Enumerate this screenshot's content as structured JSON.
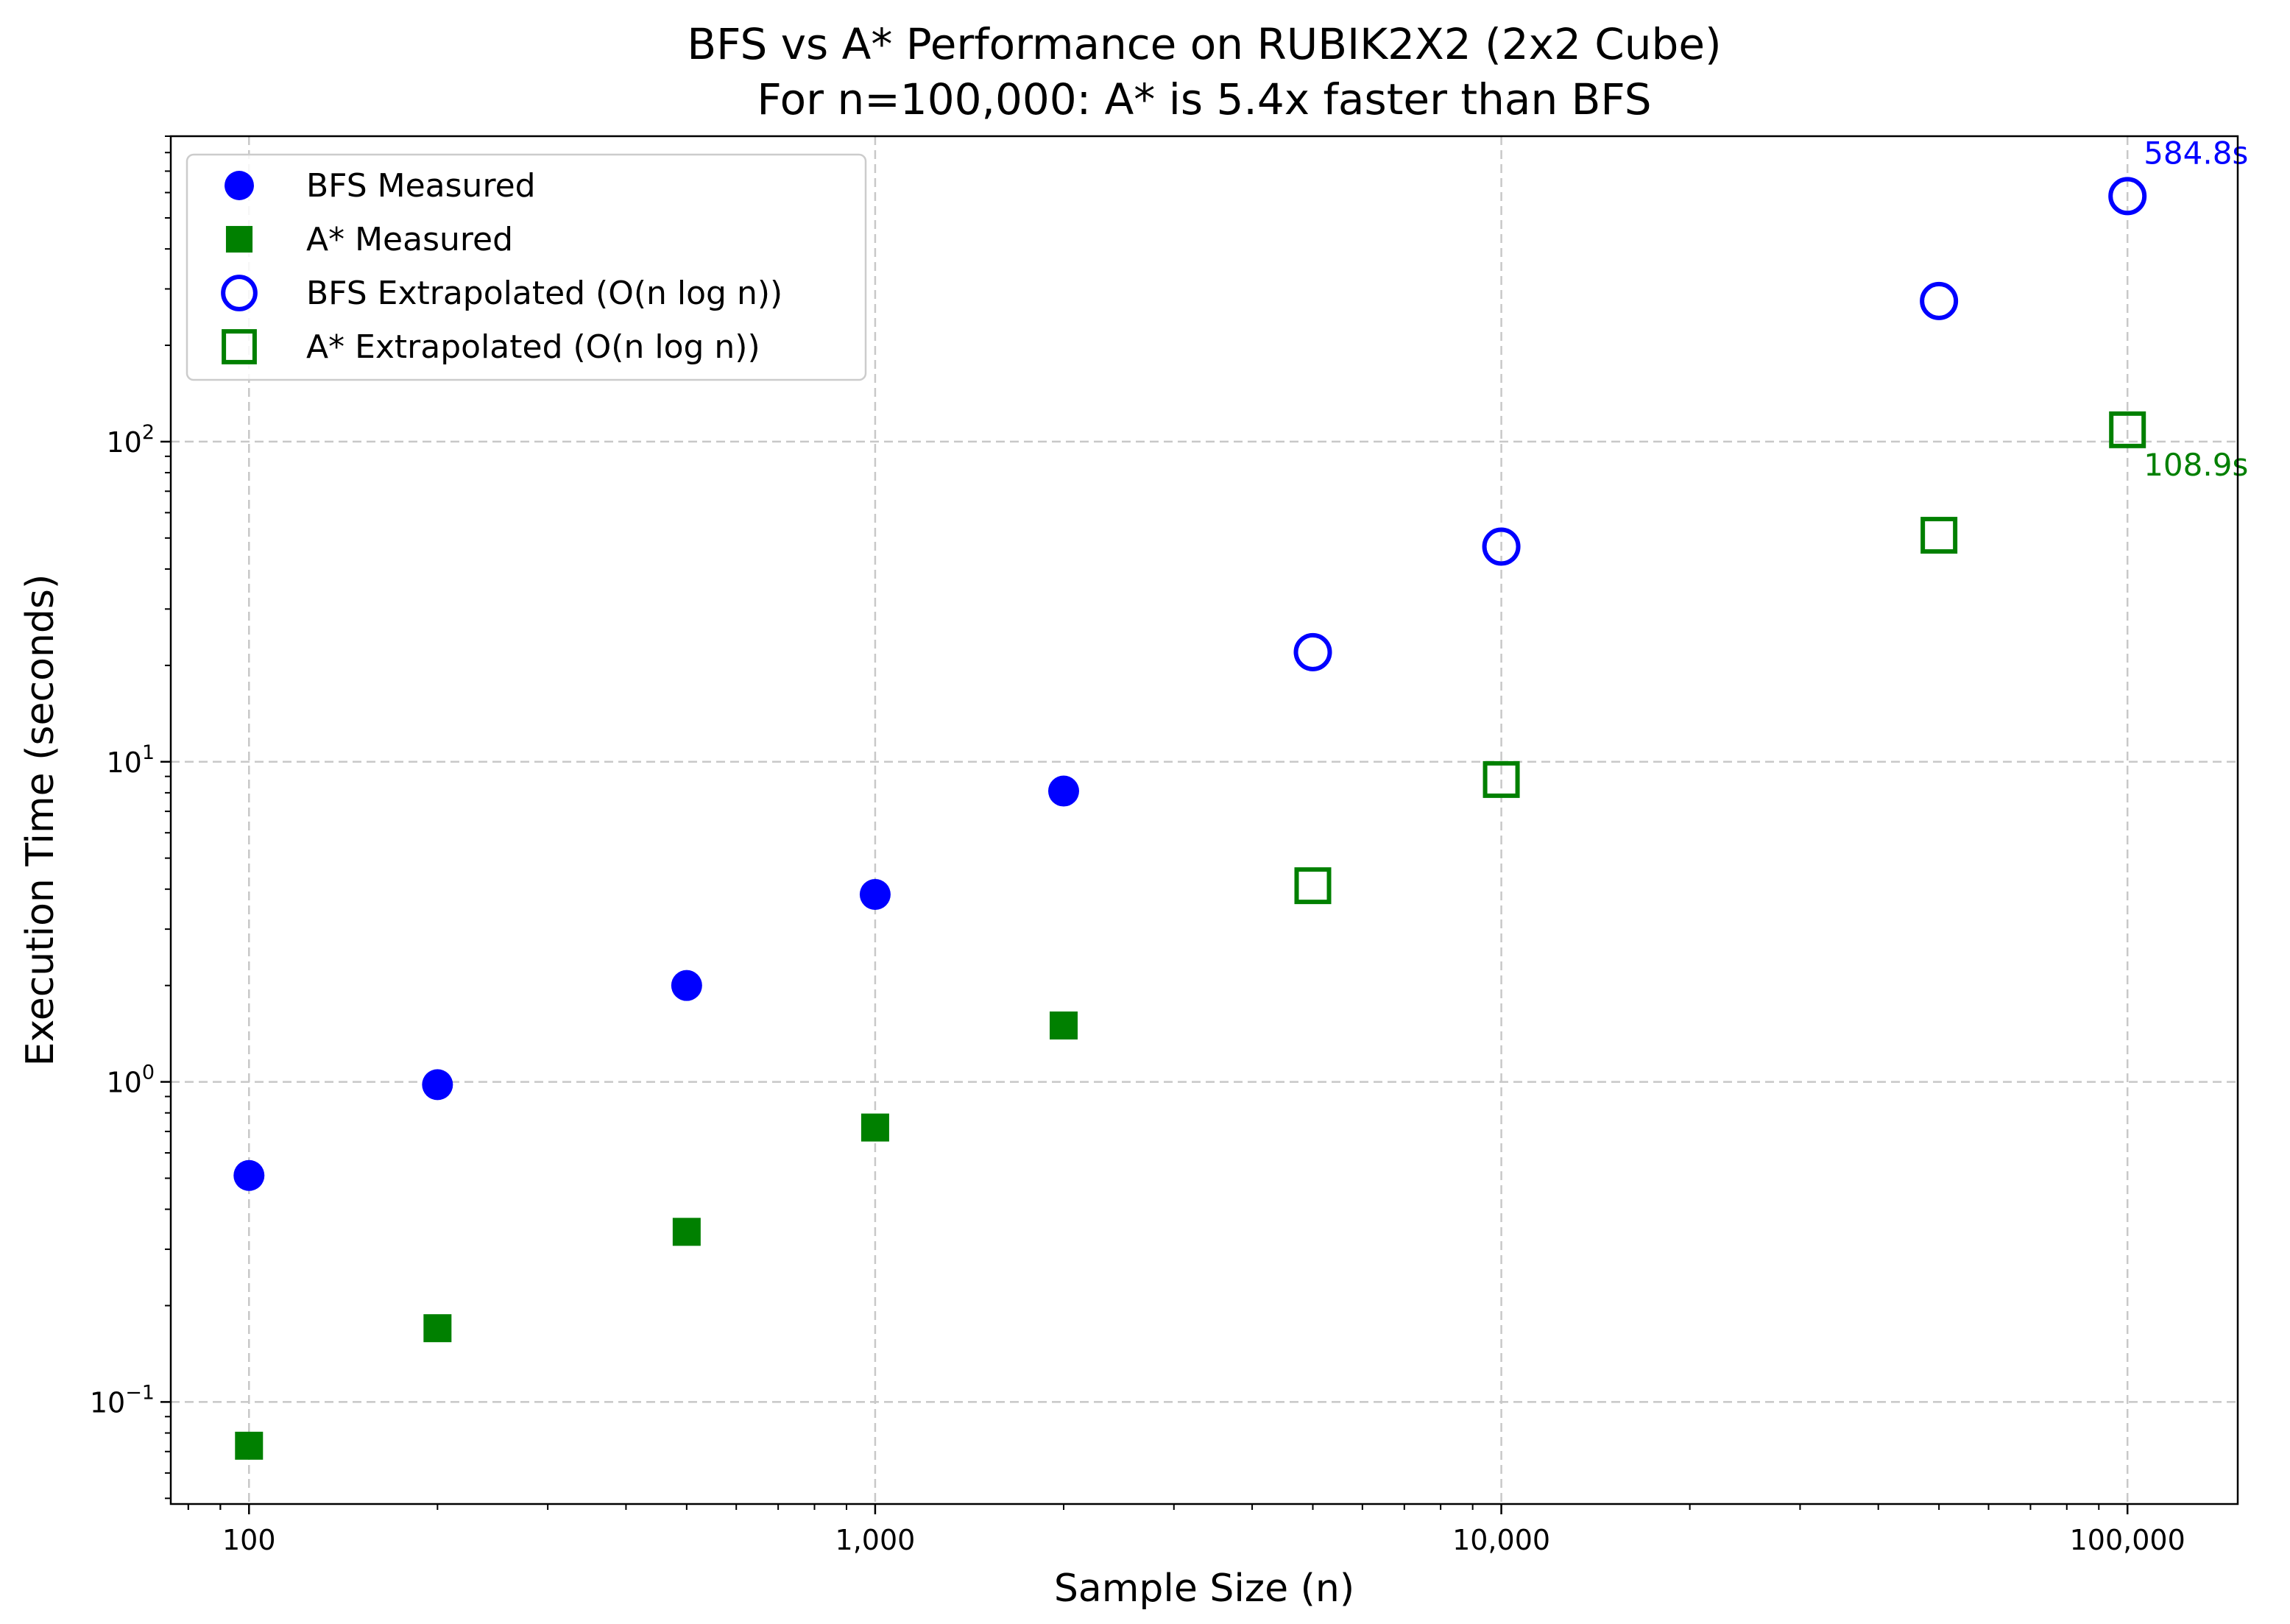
{
  "chart_data": {
    "type": "scatter",
    "title": "BFS vs A* Performance on RUBIK2X2 (2x2 Cube)",
    "subtitle": "For n=100,000: A* is 5.4x faster than BFS",
    "xlabel": "Sample Size (n)",
    "ylabel": "Execution Time (seconds)",
    "xscale": "log",
    "yscale": "log",
    "xlim": [
      75,
      150000
    ],
    "ylim": [
      0.048,
      900
    ],
    "x_ticks": [
      {
        "value": 100,
        "label": "100"
      },
      {
        "value": 1000,
        "label": "1,000"
      },
      {
        "value": 10000,
        "label": "10,000"
      },
      {
        "value": 100000,
        "label": "100,000"
      }
    ],
    "y_ticks": [
      {
        "value": 0.1,
        "base": "10",
        "exp": "−1"
      },
      {
        "value": 1,
        "base": "10",
        "exp": "0"
      },
      {
        "value": 10,
        "base": "10",
        "exp": "1"
      },
      {
        "value": 100,
        "base": "10",
        "exp": "2"
      }
    ],
    "grid": true,
    "legend_position": "top-left",
    "series": [
      {
        "name": "BFS Measured",
        "marker": "circle-filled",
        "color": "#0000ff",
        "x": [
          100,
          200,
          500,
          1000,
          2000
        ],
        "y": [
          0.51,
          0.98,
          2.0,
          3.85,
          8.1
        ]
      },
      {
        "name": "A* Measured",
        "marker": "square-filled",
        "color": "#008000",
        "x": [
          100,
          200,
          500,
          1000,
          2000
        ],
        "y": [
          0.073,
          0.17,
          0.34,
          0.72,
          1.5
        ]
      },
      {
        "name": "BFS Extrapolated (O(n log n))",
        "marker": "circle-open",
        "color": "#0000ff",
        "x": [
          5000,
          10000,
          50000,
          100000
        ],
        "y": [
          22,
          47,
          275,
          584.8
        ]
      },
      {
        "name": "A* Extrapolated (O(n log n))",
        "marker": "square-open",
        "color": "#008000",
        "x": [
          5000,
          10000,
          50000,
          100000
        ],
        "y": [
          4.1,
          8.8,
          51,
          108.9
        ]
      }
    ],
    "annotations": [
      {
        "text": "584.8s",
        "x": 100000,
        "y": 584.8,
        "color": "#0000ff",
        "placement": "above-right"
      },
      {
        "text": "108.9s",
        "x": 100000,
        "y": 108.9,
        "color": "#008000",
        "placement": "below-right"
      }
    ]
  }
}
